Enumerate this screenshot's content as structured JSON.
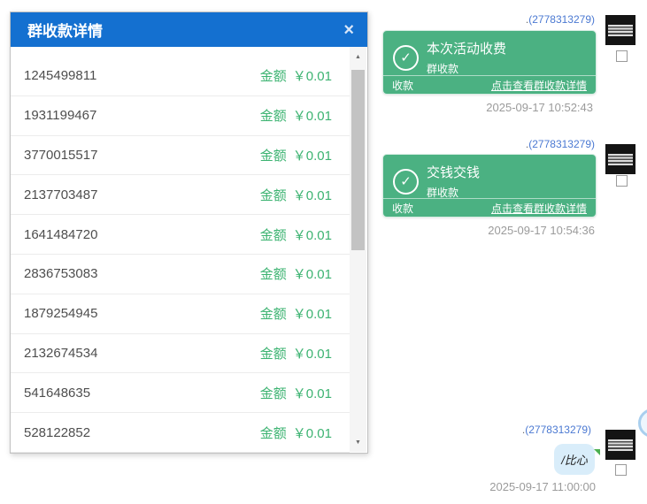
{
  "modal": {
    "title": "群收款详情",
    "amount_label": "金额",
    "rows": [
      {
        "id": "1245499811",
        "amount": "￥0.01"
      },
      {
        "id": "1931199467",
        "amount": "￥0.01"
      },
      {
        "id": "3770015517",
        "amount": "￥0.01"
      },
      {
        "id": "2137703487",
        "amount": "￥0.01"
      },
      {
        "id": "1641484720",
        "amount": "￥0.01"
      },
      {
        "id": "2836753083",
        "amount": "￥0.01"
      },
      {
        "id": "1879254945",
        "amount": "￥0.01"
      },
      {
        "id": "2132674534",
        "amount": "￥0.01"
      },
      {
        "id": "541648635",
        "amount": "￥0.01"
      },
      {
        "id": "528122852",
        "amount": "￥0.01"
      }
    ]
  },
  "chat": {
    "messages": [
      {
        "sender_prefix": ".",
        "sender_id": "(2778313279)",
        "card": {
          "title": "本次活动收费",
          "subtitle": "群收款",
          "footer_left": "收款",
          "footer_link": "点击查看群收款详情"
        },
        "timestamp": "2025-09-17 10:52:43"
      },
      {
        "sender_prefix": ".",
        "sender_id": "(2778313279)",
        "card": {
          "title": "交钱交钱",
          "subtitle": "群收款",
          "footer_left": "收款",
          "footer_link": "点击查看群收款详情"
        },
        "timestamp": "2025-09-17 10:54:36"
      },
      {
        "sender_prefix": ".",
        "sender_id": "(2778313279)",
        "bubble_text": "/比心",
        "timestamp": "2025-09-17 11:00:00"
      }
    ]
  },
  "icons": {
    "close": "×",
    "scroll_up": "▲",
    "scroll_down": "▼",
    "check": "✓"
  },
  "colors": {
    "header_blue": "#1470d0",
    "amount_green": "#3cb371",
    "card_green": "#4bb182",
    "sender_blue": "#4b79d2",
    "bubble_blue": "#d9edfa",
    "timestamp_gray": "#9b9b9b"
  }
}
